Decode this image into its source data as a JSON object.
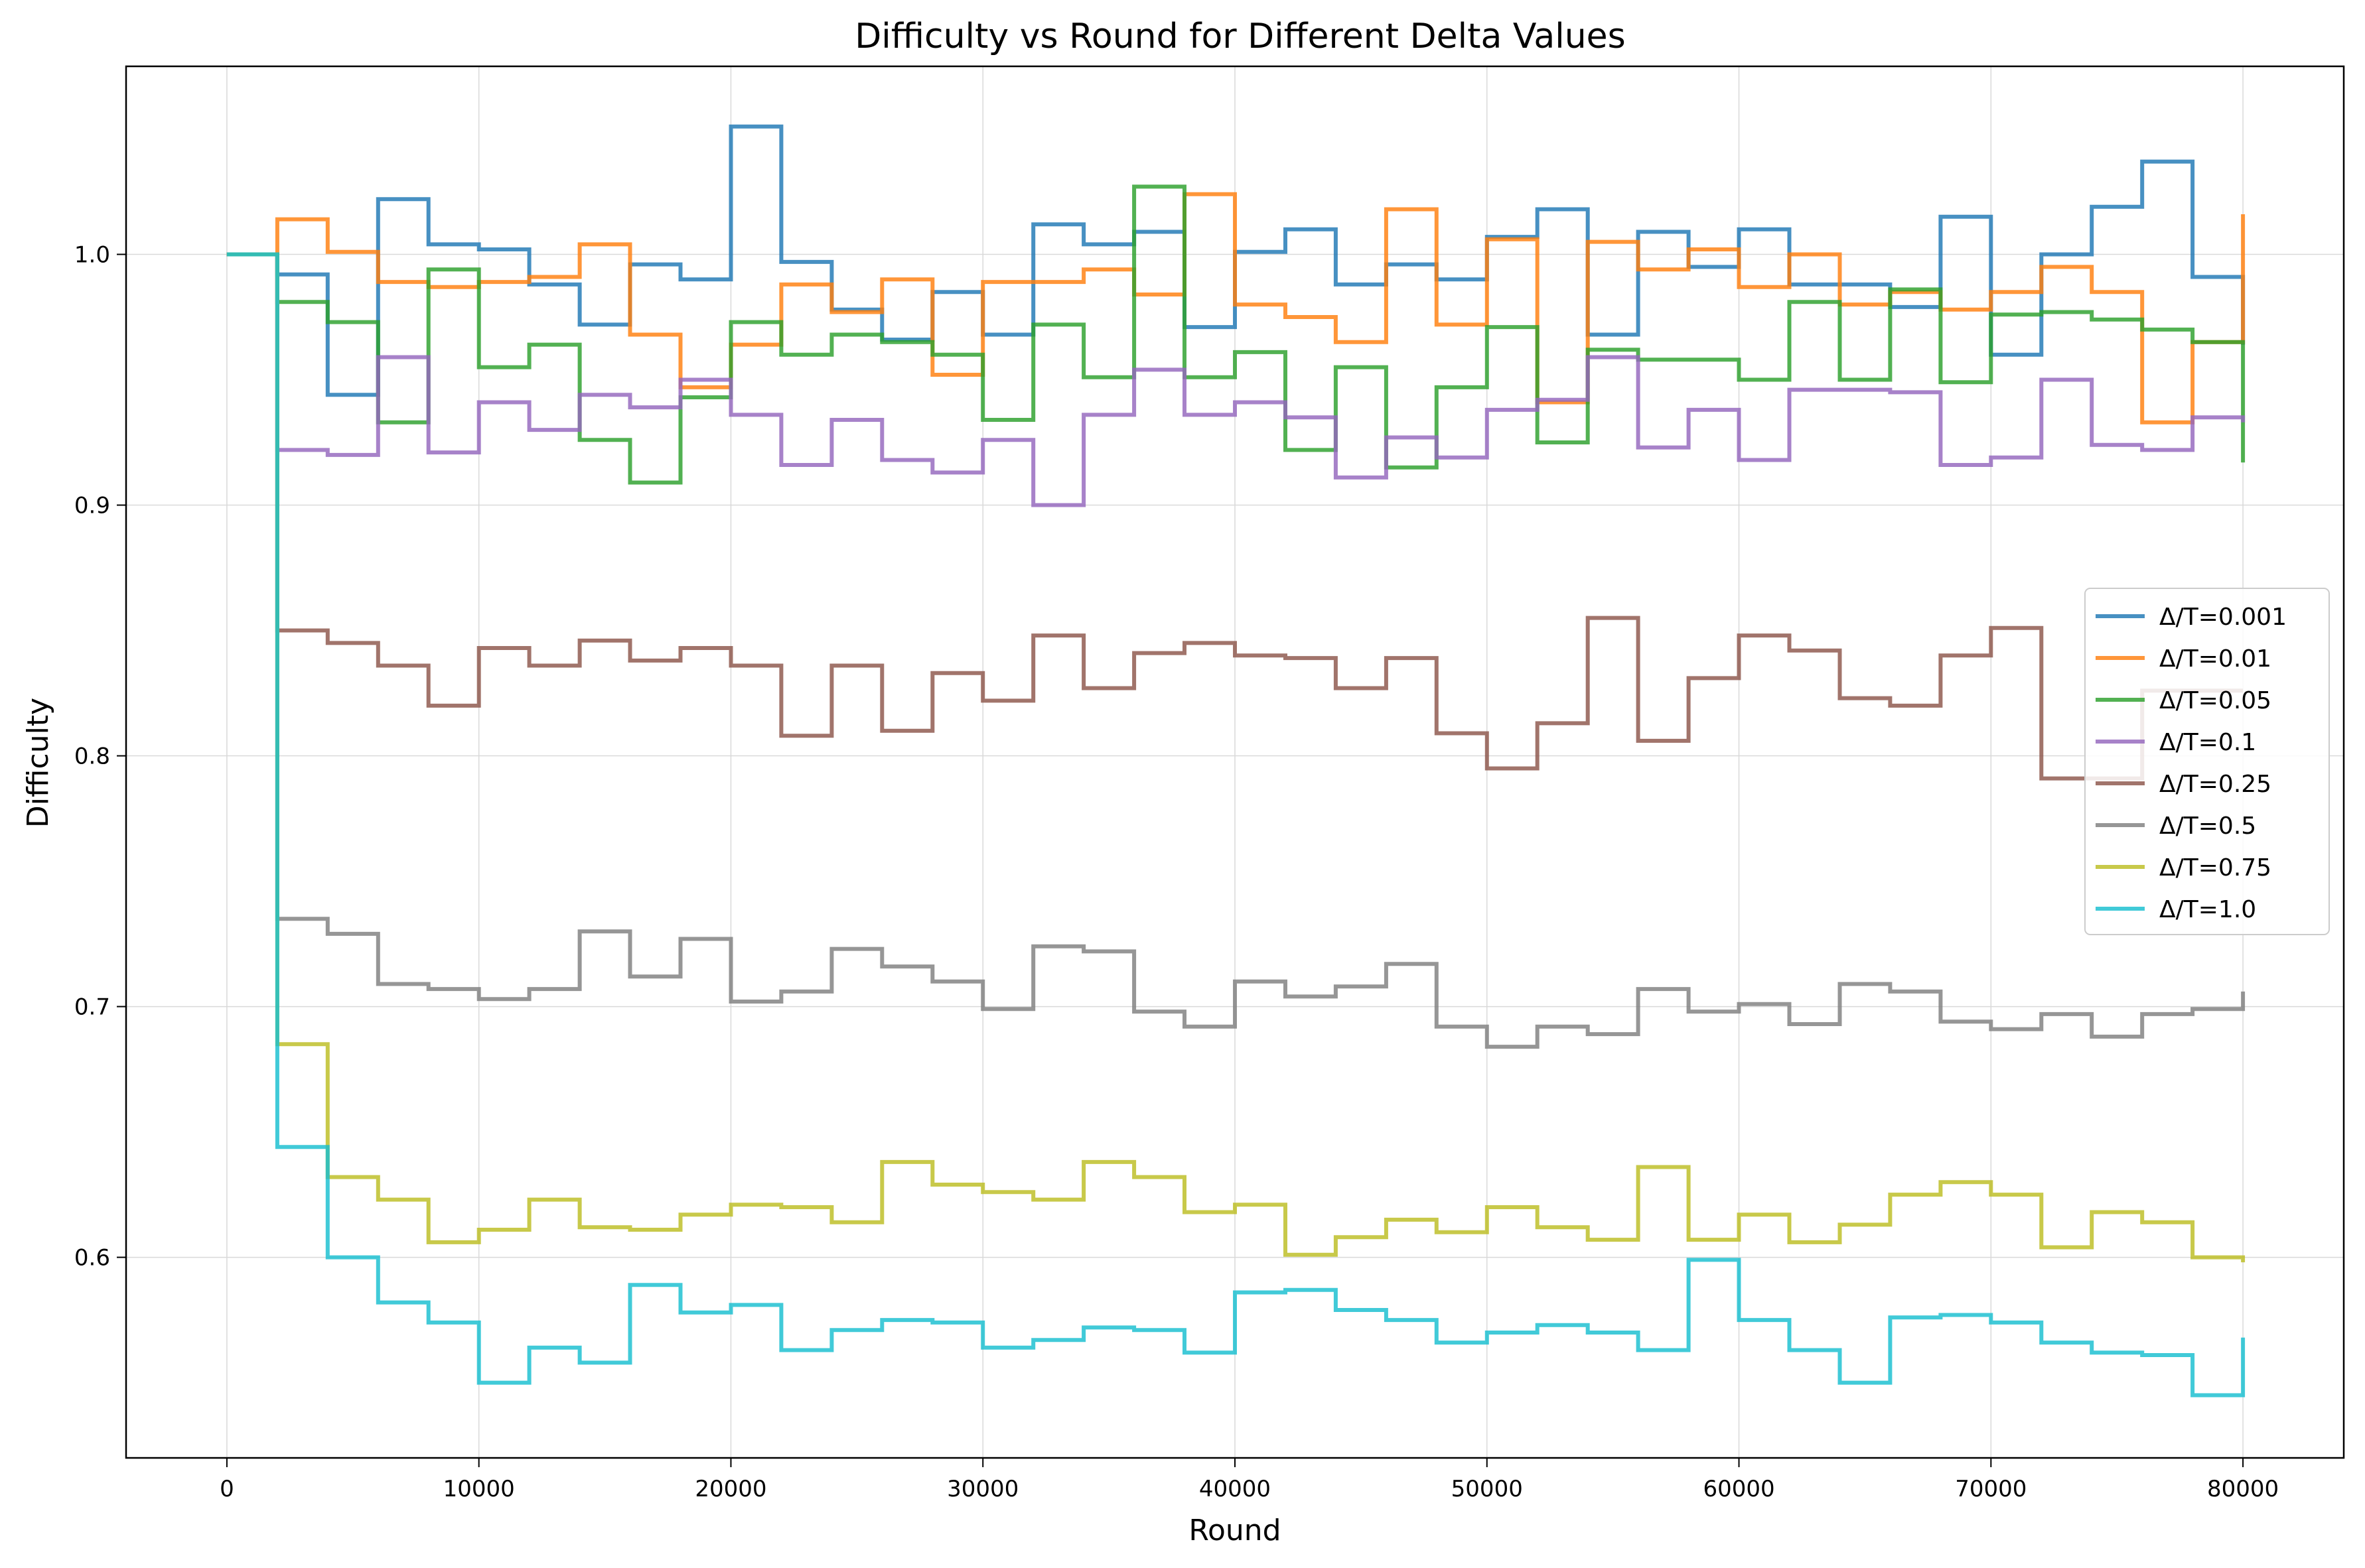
{
  "chart_data": {
    "type": "line",
    "drawstyle": "steps-post",
    "title": "Difficulty vs Round for Different Delta Values",
    "xlabel": "Round",
    "ylabel": "Difficulty",
    "xlim": [
      -4000,
      84000
    ],
    "ylim": [
      0.52,
      1.075
    ],
    "xticks": [
      0,
      10000,
      20000,
      30000,
      40000,
      50000,
      60000,
      70000,
      80000
    ],
    "yticks": [
      0.6,
      0.7,
      0.8,
      0.9,
      1.0
    ],
    "ytick_labels": [
      "0.6",
      "0.7",
      "0.8",
      "0.9",
      "1.0"
    ],
    "grid": true,
    "legend_position": "center-right",
    "x": [
      0,
      2000,
      4000,
      6000,
      8000,
      10000,
      12000,
      14000,
      16000,
      18000,
      20000,
      22000,
      24000,
      26000,
      28000,
      30000,
      32000,
      34000,
      36000,
      38000,
      40000,
      42000,
      44000,
      46000,
      48000,
      50000,
      52000,
      54000,
      56000,
      58000,
      60000,
      62000,
      64000,
      66000,
      68000,
      70000,
      72000,
      74000,
      76000,
      78000,
      80000
    ],
    "series": [
      {
        "name": "Δ/T=0.001",
        "color": "#1f77b4",
        "values": [
          1.0,
          0.992,
          0.944,
          1.022,
          1.004,
          1.002,
          0.988,
          0.972,
          0.996,
          0.99,
          1.051,
          0.997,
          0.978,
          0.966,
          0.985,
          0.968,
          1.012,
          1.004,
          1.009,
          0.971,
          1.001,
          1.01,
          0.988,
          0.996,
          0.99,
          1.007,
          1.018,
          0.968,
          1.009,
          0.995,
          1.01,
          0.988,
          0.988,
          0.979,
          1.015,
          0.96,
          1.0,
          1.019,
          1.037,
          0.991,
          0.964
        ]
      },
      {
        "name": "Δ/T=0.01",
        "color": "#ff7f0e",
        "values": [
          1.0,
          1.014,
          1.001,
          0.989,
          0.987,
          0.989,
          0.991,
          1.004,
          0.968,
          0.947,
          0.964,
          0.988,
          0.977,
          0.99,
          0.952,
          0.989,
          0.989,
          0.994,
          0.984,
          1.024,
          0.98,
          0.975,
          0.965,
          1.018,
          0.972,
          1.006,
          0.941,
          1.005,
          0.994,
          1.002,
          0.987,
          1.0,
          0.98,
          0.985,
          0.978,
          0.985,
          0.995,
          0.985,
          0.933,
          0.965,
          1.016
        ]
      },
      {
        "name": "Δ/T=0.05",
        "color": "#2ca02c",
        "values": [
          1.0,
          0.981,
          0.973,
          0.933,
          0.994,
          0.955,
          0.964,
          0.926,
          0.909,
          0.943,
          0.973,
          0.96,
          0.968,
          0.965,
          0.96,
          0.934,
          0.972,
          0.951,
          1.027,
          0.951,
          0.961,
          0.922,
          0.955,
          0.915,
          0.947,
          0.971,
          0.925,
          0.962,
          0.958,
          0.958,
          0.95,
          0.981,
          0.95,
          0.986,
          0.949,
          0.976,
          0.977,
          0.974,
          0.97,
          0.965,
          0.917
        ]
      },
      {
        "name": "Δ/T=0.1",
        "color": "#9467bd",
        "values": [
          1.0,
          0.922,
          0.92,
          0.959,
          0.921,
          0.941,
          0.93,
          0.944,
          0.939,
          0.95,
          0.936,
          0.916,
          0.934,
          0.918,
          0.913,
          0.926,
          0.9,
          0.936,
          0.954,
          0.936,
          0.941,
          0.935,
          0.911,
          0.927,
          0.919,
          0.938,
          0.942,
          0.959,
          0.923,
          0.938,
          0.918,
          0.946,
          0.946,
          0.945,
          0.916,
          0.919,
          0.95,
          0.924,
          0.922,
          0.935,
          0.933
        ]
      },
      {
        "name": "Δ/T=0.25",
        "color": "#8c564b",
        "values": [
          1.0,
          0.85,
          0.845,
          0.836,
          0.82,
          0.843,
          0.836,
          0.846,
          0.838,
          0.843,
          0.836,
          0.808,
          0.836,
          0.81,
          0.833,
          0.822,
          0.848,
          0.827,
          0.841,
          0.845,
          0.84,
          0.839,
          0.827,
          0.839,
          0.809,
          0.795,
          0.813,
          0.855,
          0.806,
          0.831,
          0.848,
          0.842,
          0.823,
          0.82,
          0.84,
          0.851,
          0.791,
          0.791,
          0.826,
          0.826,
          0.826
        ]
      },
      {
        "name": "Δ/T=0.5",
        "color": "#7f7f7f",
        "values": [
          1.0,
          0.735,
          0.729,
          0.709,
          0.707,
          0.703,
          0.707,
          0.73,
          0.712,
          0.727,
          0.702,
          0.706,
          0.723,
          0.716,
          0.71,
          0.699,
          0.724,
          0.722,
          0.698,
          0.692,
          0.71,
          0.704,
          0.708,
          0.717,
          0.692,
          0.684,
          0.692,
          0.689,
          0.707,
          0.698,
          0.701,
          0.693,
          0.709,
          0.706,
          0.694,
          0.691,
          0.697,
          0.688,
          0.697,
          0.699,
          0.706
        ]
      },
      {
        "name": "Δ/T=0.75",
        "color": "#bcbd22",
        "values": [
          1.0,
          0.685,
          0.632,
          0.623,
          0.606,
          0.611,
          0.623,
          0.612,
          0.611,
          0.617,
          0.621,
          0.62,
          0.614,
          0.638,
          0.629,
          0.626,
          0.623,
          0.638,
          0.632,
          0.618,
          0.621,
          0.601,
          0.608,
          0.615,
          0.61,
          0.62,
          0.612,
          0.607,
          0.636,
          0.607,
          0.617,
          0.606,
          0.613,
          0.625,
          0.63,
          0.625,
          0.604,
          0.618,
          0.614,
          0.6,
          0.598
        ]
      },
      {
        "name": "Δ/T=1.0",
        "color": "#17becf",
        "values": [
          1.0,
          0.644,
          0.6,
          0.582,
          0.574,
          0.55,
          0.564,
          0.558,
          0.589,
          0.578,
          0.581,
          0.563,
          0.571,
          0.575,
          0.574,
          0.564,
          0.567,
          0.572,
          0.571,
          0.562,
          0.586,
          0.587,
          0.579,
          0.575,
          0.566,
          0.57,
          0.573,
          0.57,
          0.563,
          0.599,
          0.575,
          0.563,
          0.55,
          0.576,
          0.577,
          0.574,
          0.566,
          0.562,
          0.561,
          0.545,
          0.568
        ]
      }
    ]
  }
}
